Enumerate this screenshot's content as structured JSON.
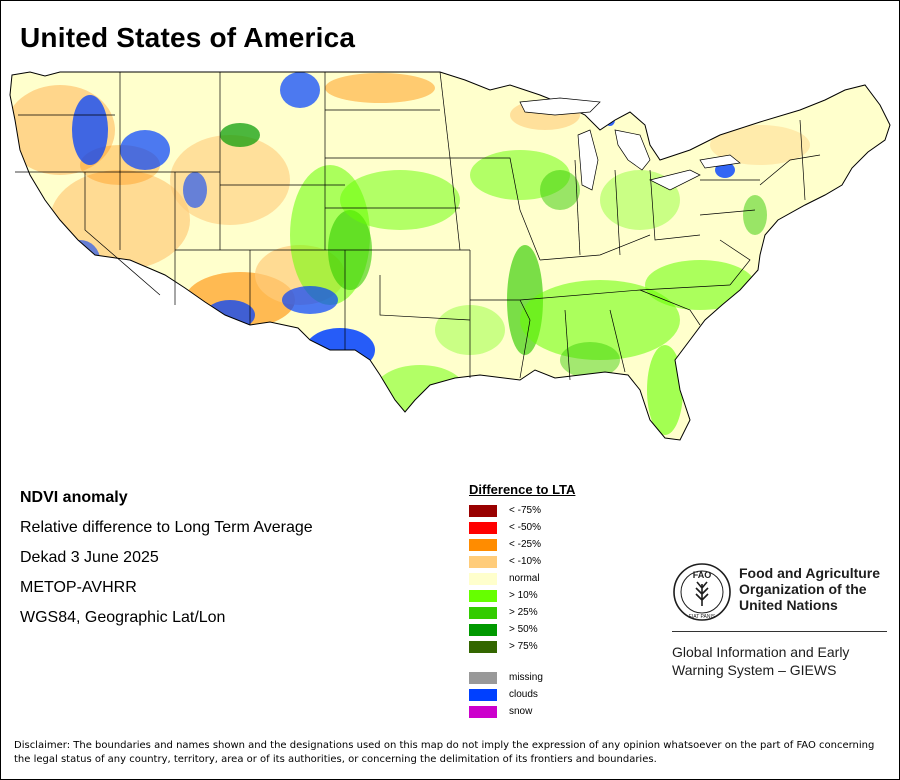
{
  "title": "United States of America",
  "info": {
    "product": "NDVI anomaly",
    "description": "Relative difference to Long Term Average",
    "period": "Dekad 3 June 2025",
    "sensor": "METOP-AVHRR",
    "projection": "WGS84, Geographic Lat/Lon"
  },
  "legend": {
    "title": "Difference to LTA",
    "classes": [
      {
        "label": "< -75%",
        "color": "#990000"
      },
      {
        "label": "< -50%",
        "color": "#ff0000"
      },
      {
        "label": "< -25%",
        "color": "#ff8c00"
      },
      {
        "label": "< -10%",
        "color": "#ffcc7a"
      },
      {
        "label": "normal",
        "color": "#ffffcc"
      },
      {
        "label": "> 10%",
        "color": "#66ff00"
      },
      {
        "label": "> 25%",
        "color": "#33cc00"
      },
      {
        "label": "> 50%",
        "color": "#009900"
      },
      {
        "label": "> 75%",
        "color": "#336600"
      }
    ],
    "extra": [
      {
        "label": "missing",
        "color": "#999999"
      },
      {
        "label": "clouds",
        "color": "#0040ff"
      },
      {
        "label": "snow",
        "color": "#cc00cc"
      }
    ]
  },
  "logo": {
    "letters": "FAO",
    "motto": "FIAT PANIS",
    "org_name": [
      "Food and Agriculture",
      "Organization of the",
      "United Nations"
    ],
    "system": [
      "Global Information and Early",
      "Warning System – GIEWS"
    ]
  },
  "disclaimer": "Disclaimer: The boundaries and names shown and the designations used on this map do not imply the expression of any opinion whatsoever on the part of FAO concerning the legal status of any country, territory, area or of its authorities, or concerning the delimitation of its frontiers and boundaries."
}
